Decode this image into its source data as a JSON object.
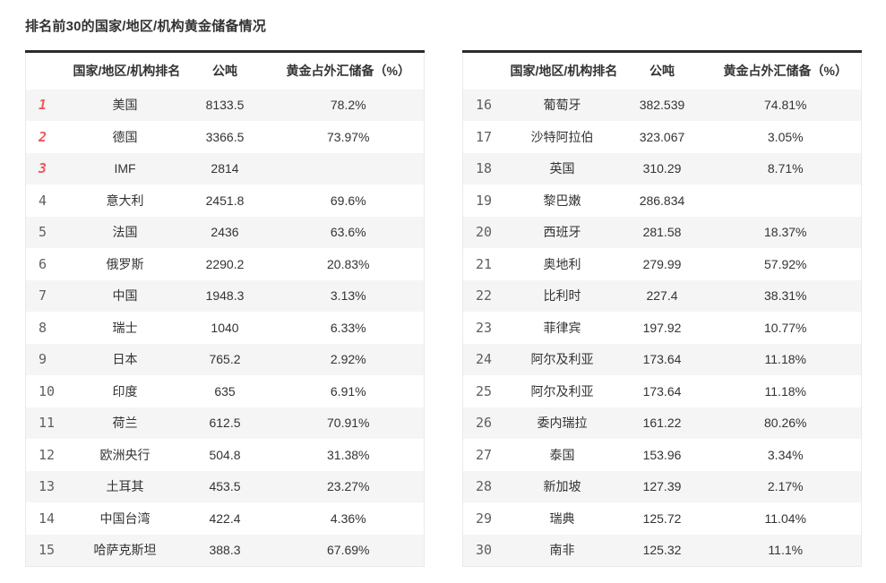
{
  "title": "排名前30的国家/地区/机构黄金储备情况",
  "colors": {
    "rank_top3": "#f0575c",
    "rank_default": "#5f5f5f",
    "stripe": "#f5f5f5",
    "header_border": "#2b2b2b",
    "text": "#333333",
    "table_side_border": "#eaeaea"
  },
  "chart_data": {
    "type": "table",
    "title": "排名前30的国家/地区/机构黄金储备情况",
    "columns": [
      "国家/地区/机构排名",
      "公吨",
      "黄金占外汇储备（%）"
    ],
    "tables": [
      {
        "rows": [
          [
            "1",
            "美国",
            "8133.5",
            "78.2%"
          ],
          [
            "2",
            "德国",
            "3366.5",
            "73.97%"
          ],
          [
            "3",
            "IMF",
            "2814",
            ""
          ],
          [
            "4",
            "意大利",
            "2451.8",
            "69.6%"
          ],
          [
            "5",
            "法国",
            "2436",
            "63.6%"
          ],
          [
            "6",
            "俄罗斯",
            "2290.2",
            "20.83%"
          ],
          [
            "7",
            "中国",
            "1948.3",
            "3.13%"
          ],
          [
            "8",
            "瑞士",
            "1040",
            "6.33%"
          ],
          [
            "9",
            "日本",
            "765.2",
            "2.92%"
          ],
          [
            "10",
            "印度",
            "635",
            "6.91%"
          ],
          [
            "11",
            "荷兰",
            "612.5",
            "70.91%"
          ],
          [
            "12",
            "欧洲央行",
            "504.8",
            "31.38%"
          ],
          [
            "13",
            "土耳其",
            "453.5",
            "23.27%"
          ],
          [
            "14",
            "中国台湾",
            "422.4",
            "4.36%"
          ],
          [
            "15",
            "哈萨克斯坦",
            "388.3",
            "67.69%"
          ]
        ]
      },
      {
        "rows": [
          [
            "16",
            "葡萄牙",
            "382.539",
            "74.81%"
          ],
          [
            "17",
            "沙特阿拉伯",
            "323.067",
            "3.05%"
          ],
          [
            "18",
            "英国",
            "310.29",
            "8.71%"
          ],
          [
            "19",
            "黎巴嫩",
            "286.834",
            ""
          ],
          [
            "20",
            "西班牙",
            "281.58",
            "18.37%"
          ],
          [
            "21",
            "奥地利",
            "279.99",
            "57.92%"
          ],
          [
            "22",
            "比利时",
            "227.4",
            "38.31%"
          ],
          [
            "23",
            "菲律宾",
            "197.92",
            "10.77%"
          ],
          [
            "24",
            "阿尔及利亚",
            "173.64",
            "11.18%"
          ],
          [
            "25",
            "阿尔及利亚",
            "173.64",
            "11.18%"
          ],
          [
            "26",
            "委内瑞拉",
            "161.22",
            "80.26%"
          ],
          [
            "27",
            "泰国",
            "153.96",
            "3.34%"
          ],
          [
            "28",
            "新加坡",
            "127.39",
            "2.17%"
          ],
          [
            "29",
            "瑞典",
            "125.72",
            "11.04%"
          ],
          [
            "30",
            "南非",
            "125.32",
            "11.1%"
          ]
        ]
      }
    ]
  }
}
